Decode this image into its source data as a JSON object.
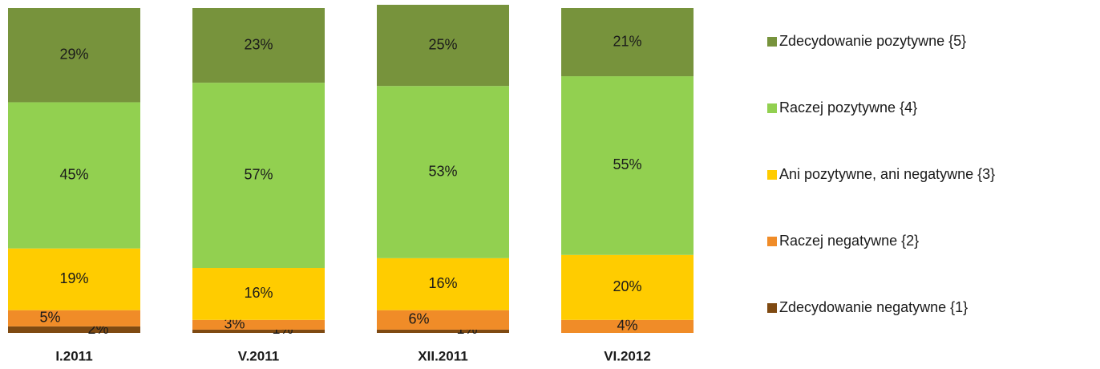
{
  "chart_data": {
    "type": "stacked_bar",
    "categories": [
      "I.2011",
      "V.2011",
      "XII.2011",
      "VI.2012"
    ],
    "ylim": [
      0,
      100
    ],
    "series": [
      {
        "name": "Zdecydowanie negatywne {1}",
        "color": "#7f4a12",
        "values": [
          2,
          1,
          1,
          null
        ],
        "value_labels": [
          "2%",
          "1%",
          "1%",
          null
        ]
      },
      {
        "name": "Raczej negatywne {2}",
        "color": "#f08c28",
        "values": [
          5,
          3,
          6,
          4
        ],
        "value_labels": [
          "5%",
          "3%",
          "6%",
          "4%"
        ]
      },
      {
        "name": "Ani pozytywne, ani negatywne {3}",
        "color": "#ffcc00",
        "values": [
          19,
          16,
          16,
          20
        ],
        "value_labels": [
          "19%",
          "16%",
          "16%",
          "20%"
        ]
      },
      {
        "name": "Raczej pozytywne {4}",
        "color": "#92d050",
        "values": [
          45,
          57,
          53,
          55
        ],
        "value_labels": [
          "45%",
          "57%",
          "53%",
          "55%"
        ]
      },
      {
        "name": "Zdecydowanie pozytywne {5}",
        "color": "#77933c",
        "values": [
          29,
          23,
          25,
          21
        ],
        "value_labels": [
          "29%",
          "23%",
          "25%",
          "21%"
        ]
      }
    ]
  }
}
